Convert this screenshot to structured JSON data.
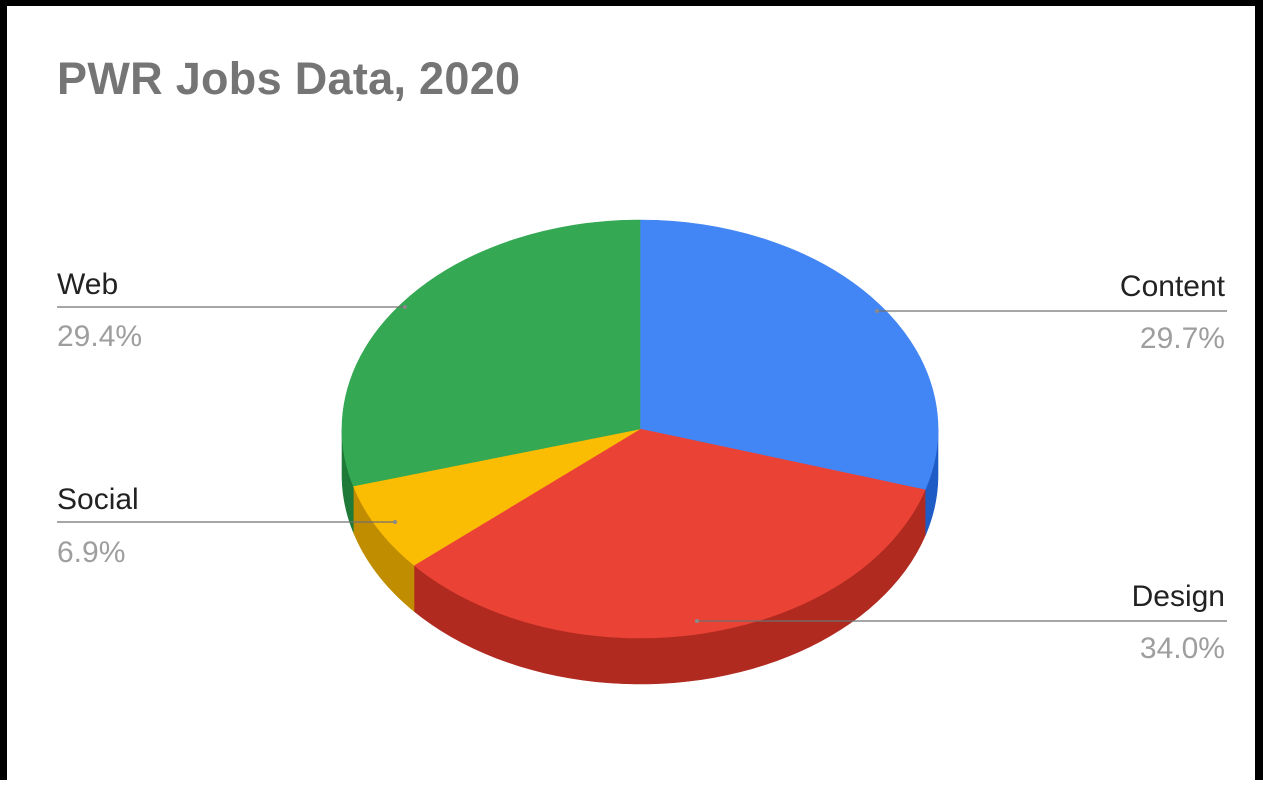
{
  "chart_data": {
    "type": "pie",
    "title": "PWR Jobs Data, 2020",
    "slices": [
      {
        "label": "Content",
        "value": 29.7,
        "display": "29.7%",
        "color": "#4285f4",
        "side_color": "#1f5bc4"
      },
      {
        "label": "Design",
        "value": 34.0,
        "display": "34.0%",
        "color": "#ea4335",
        "side_color": "#b02a20"
      },
      {
        "label": "Social",
        "value": 6.9,
        "display": "6.9%",
        "color": "#fbbc04",
        "side_color": "#c08d00"
      },
      {
        "label": "Web",
        "value": 29.4,
        "display": "29.4%",
        "color": "#34a853",
        "side_color": "#1f7a38"
      }
    ],
    "style": "3d",
    "legend": "labeled"
  }
}
